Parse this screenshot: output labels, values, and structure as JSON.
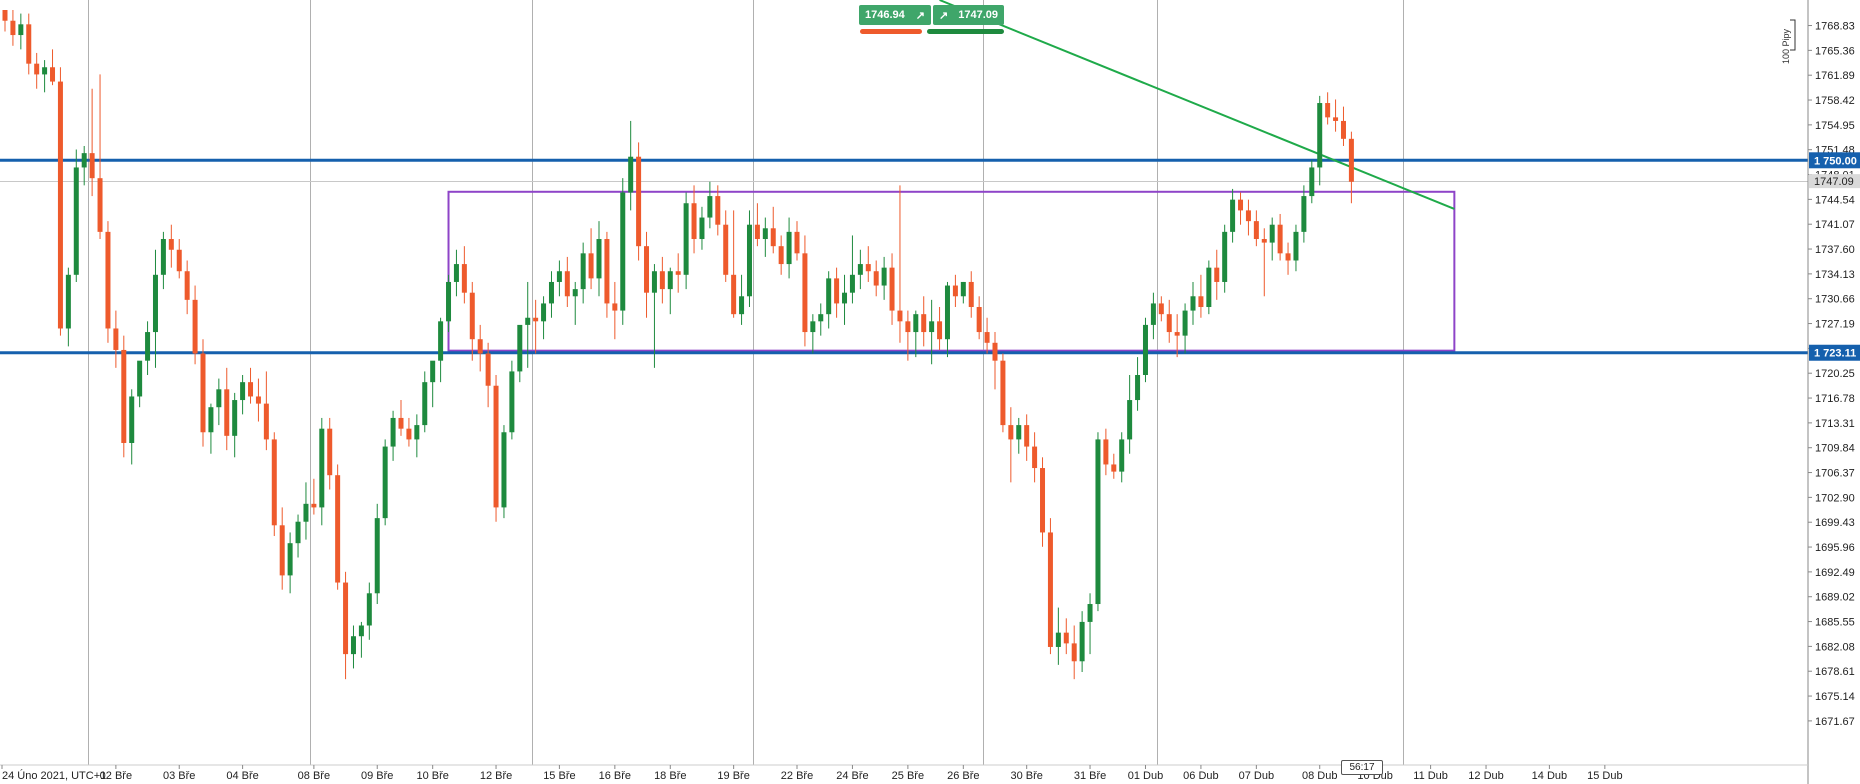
{
  "colors": {
    "up": "#1e8a3e",
    "down": "#ee5a2c",
    "hline": "#1560ad",
    "rectangle": "#8e44c8",
    "trendline": "#1faa4a",
    "grid": "#b0b0b0",
    "axis_text": "#222222"
  },
  "quote": {
    "bid": "1746.94",
    "ask": "1747.09",
    "bid_icon": "arrow-up-right-icon",
    "ask_icon": "arrow-up-right-icon"
  },
  "pip_label": "100 Pipy",
  "time_badge": "56:17",
  "chart_data": {
    "type": "candlestick",
    "ylim": [
      1669.0,
      1771.0
    ],
    "y_ticks": [
      1768.83,
      1765.36,
      1761.89,
      1758.42,
      1754.95,
      1751.48,
      1748.01,
      1744.54,
      1741.07,
      1737.6,
      1734.13,
      1730.66,
      1727.19,
      1723.72,
      1720.25,
      1716.78,
      1713.31,
      1709.84,
      1706.37,
      1702.9,
      1699.43,
      1695.96,
      1692.49,
      1689.02,
      1685.55,
      1682.08,
      1678.61,
      1675.14,
      1671.67
    ],
    "y_tick_labels": [
      "1768.83",
      "1765.36",
      "1761.89",
      "1758.42",
      "1754.95",
      "1751.48",
      "1748.01",
      "1744.54",
      "1741.07",
      "1737.60",
      "1734.13",
      "1730.66",
      "1727.19",
      "1723.72",
      "1720.25",
      "1716.78",
      "1713.31",
      "1709.84",
      "1706.37",
      "1702.90",
      "1699.43",
      "1695.96",
      "1692.49",
      "1689.02",
      "1685.55",
      "1682.08",
      "1678.61",
      "1675.14",
      "1671.67"
    ],
    "x_labels": [
      "24 Úno 2021, UTC+1",
      "02 Bře",
      "03 Bře",
      "04 Bře",
      "08 Bře",
      "09 Bře",
      "10 Bře",
      "12 Bře",
      "15 Bře",
      "16 Bře",
      "18 Bře",
      "19 Bře",
      "22 Bře",
      "24 Bře",
      "25 Bře",
      "26 Bře",
      "30 Bře",
      "31 Bře",
      "01 Dub",
      "06 Dub",
      "07 Dub",
      "08 Dub",
      "10 Dub",
      "11 Dub",
      "12 Dub",
      "14 Dub",
      "15 Dub"
    ],
    "x_label_index": [
      0,
      14,
      22,
      30,
      39,
      47,
      54,
      62,
      70,
      77,
      84,
      92,
      100,
      107,
      114,
      121,
      129,
      137,
      144,
      151,
      158,
      166,
      173,
      180,
      187,
      195,
      202
    ],
    "separator_index": [
      11,
      39,
      67,
      95,
      124,
      146,
      177
    ],
    "candles": [
      [
        1771.0,
        1771.0,
        1768.0,
        1769.5
      ],
      [
        1769.5,
        1771.0,
        1766.0,
        1767.5
      ],
      [
        1767.5,
        1770.5,
        1765.5,
        1769.0
      ],
      [
        1769.0,
        1770.5,
        1762.0,
        1763.5
      ],
      [
        1763.5,
        1765.0,
        1760.0,
        1762.0
      ],
      [
        1762.0,
        1764.0,
        1759.5,
        1763.0
      ],
      [
        1763.0,
        1765.5,
        1760.5,
        1761.0
      ],
      [
        1761.0,
        1763.0,
        1725.5,
        1726.5
      ],
      [
        1726.5,
        1735.0,
        1724.0,
        1734.0
      ],
      [
        1734.0,
        1751.5,
        1733.0,
        1749.0
      ],
      [
        1749.0,
        1752.0,
        1746.5,
        1751.0
      ],
      [
        1751.0,
        1760.0,
        1745.0,
        1747.5
      ],
      [
        1747.5,
        1762.0,
        1739.0,
        1740.0
      ],
      [
        1740.0,
        1741.5,
        1724.5,
        1726.5
      ],
      [
        1726.5,
        1729.0,
        1721.0,
        1723.5
      ],
      [
        1723.5,
        1725.5,
        1708.5,
        1710.5
      ],
      [
        1710.5,
        1718.0,
        1707.5,
        1717.0
      ],
      [
        1717.0,
        1721.5,
        1715.5,
        1722.0
      ],
      [
        1722.0,
        1727.5,
        1720.0,
        1726.0
      ],
      [
        1726.0,
        1737.5,
        1721.0,
        1734.0
      ],
      [
        1734.0,
        1740.0,
        1732.0,
        1739.0
      ],
      [
        1739.0,
        1741.0,
        1735.0,
        1737.5
      ],
      [
        1737.5,
        1739.0,
        1733.5,
        1734.5
      ],
      [
        1734.5,
        1736.0,
        1728.5,
        1730.5
      ],
      [
        1730.5,
        1732.5,
        1721.5,
        1723.0
      ],
      [
        1723.0,
        1725.0,
        1710.0,
        1712.0
      ],
      [
        1712.0,
        1716.0,
        1709.0,
        1715.5
      ],
      [
        1715.5,
        1719.5,
        1713.0,
        1718.0
      ],
      [
        1718.0,
        1721.0,
        1709.5,
        1711.5
      ],
      [
        1711.5,
        1717.5,
        1708.5,
        1716.5
      ],
      [
        1716.5,
        1720.0,
        1714.5,
        1719.0
      ],
      [
        1719.0,
        1721.0,
        1716.0,
        1717.0
      ],
      [
        1717.0,
        1719.5,
        1713.5,
        1716.0
      ],
      [
        1716.0,
        1720.5,
        1709.5,
        1711.0
      ],
      [
        1711.0,
        1712.0,
        1697.5,
        1699.0
      ],
      [
        1699.0,
        1701.5,
        1690.0,
        1692.0
      ],
      [
        1692.0,
        1698.0,
        1689.5,
        1696.5
      ],
      [
        1696.5,
        1700.5,
        1694.5,
        1699.5
      ],
      [
        1699.5,
        1705.0,
        1697.0,
        1702.0
      ],
      [
        1702.0,
        1705.5,
        1700.5,
        1701.5
      ],
      [
        1701.5,
        1714.0,
        1699.0,
        1712.5
      ],
      [
        1712.5,
        1714.0,
        1704.0,
        1706.0
      ],
      [
        1706.0,
        1707.5,
        1690.0,
        1691.0
      ],
      [
        1691.0,
        1692.5,
        1677.5,
        1681.0
      ],
      [
        1681.0,
        1685.0,
        1679.0,
        1683.5
      ],
      [
        1683.5,
        1685.5,
        1680.5,
        1685.0
      ],
      [
        1685.0,
        1691.0,
        1683.0,
        1689.5
      ],
      [
        1689.5,
        1702.0,
        1688.0,
        1700.0
      ],
      [
        1700.0,
        1711.0,
        1699.0,
        1710.0
      ],
      [
        1710.0,
        1715.0,
        1708.0,
        1714.0
      ],
      [
        1714.0,
        1716.5,
        1711.5,
        1712.5
      ],
      [
        1712.5,
        1714.0,
        1710.0,
        1711.0
      ],
      [
        1711.0,
        1714.5,
        1708.5,
        1713.0
      ],
      [
        1713.0,
        1720.5,
        1712.0,
        1719.0
      ],
      [
        1719.0,
        1721.0,
        1715.5,
        1722.0
      ],
      [
        1722.0,
        1728.0,
        1719.0,
        1727.5
      ],
      [
        1727.5,
        1734.0,
        1726.0,
        1733.0
      ],
      [
        1733.0,
        1737.5,
        1731.0,
        1735.5
      ],
      [
        1735.5,
        1738.0,
        1730.0,
        1731.5
      ],
      [
        1731.5,
        1733.0,
        1722.0,
        1725.0
      ],
      [
        1725.0,
        1727.0,
        1720.5,
        1723.0
      ],
      [
        1723.0,
        1724.5,
        1715.5,
        1718.5
      ],
      [
        1718.5,
        1720.0,
        1699.5,
        1701.5
      ],
      [
        1701.5,
        1713.0,
        1700.0,
        1712.0
      ],
      [
        1712.0,
        1722.0,
        1711.0,
        1720.5
      ],
      [
        1720.5,
        1726.0,
        1719.0,
        1727.0
      ],
      [
        1727.0,
        1733.0,
        1721.0,
        1728.0
      ],
      [
        1728.0,
        1730.5,
        1723.0,
        1727.5
      ],
      [
        1727.5,
        1731.0,
        1725.0,
        1730.0
      ],
      [
        1730.0,
        1734.5,
        1728.0,
        1733.0
      ],
      [
        1733.0,
        1736.0,
        1731.0,
        1734.5
      ],
      [
        1734.5,
        1736.5,
        1729.5,
        1731.0
      ],
      [
        1731.0,
        1733.0,
        1727.0,
        1732.0
      ],
      [
        1732.0,
        1738.5,
        1730.0,
        1737.0
      ],
      [
        1737.0,
        1740.5,
        1732.0,
        1733.5
      ],
      [
        1733.5,
        1741.5,
        1731.0,
        1739.0
      ],
      [
        1739.0,
        1740.0,
        1728.0,
        1730.0
      ],
      [
        1730.0,
        1733.0,
        1725.0,
        1729.0
      ],
      [
        1729.0,
        1747.5,
        1727.0,
        1745.5
      ],
      [
        1745.5,
        1755.5,
        1743.0,
        1750.5
      ],
      [
        1750.5,
        1752.5,
        1736.0,
        1738.0
      ],
      [
        1738.0,
        1740.0,
        1728.0,
        1731.5
      ],
      [
        1731.5,
        1735.5,
        1721.0,
        1734.5
      ],
      [
        1734.5,
        1736.5,
        1730.0,
        1732.0
      ],
      [
        1732.0,
        1735.0,
        1728.5,
        1734.5
      ],
      [
        1734.5,
        1737.0,
        1731.5,
        1734.0
      ],
      [
        1734.0,
        1745.5,
        1732.0,
        1744.0
      ],
      [
        1744.0,
        1746.5,
        1737.0,
        1739.0
      ],
      [
        1739.0,
        1743.5,
        1737.5,
        1742.0
      ],
      [
        1742.0,
        1747.0,
        1740.5,
        1745.0
      ],
      [
        1745.0,
        1746.5,
        1739.5,
        1741.0
      ],
      [
        1741.0,
        1743.0,
        1733.0,
        1734.0
      ],
      [
        1734.0,
        1743.0,
        1728.0,
        1728.5
      ],
      [
        1728.5,
        1734.0,
        1727.0,
        1731.0
      ],
      [
        1731.0,
        1743.0,
        1729.5,
        1741.0
      ],
      [
        1741.0,
        1744.0,
        1738.0,
        1739.0
      ],
      [
        1739.0,
        1742.0,
        1736.5,
        1740.5
      ],
      [
        1740.5,
        1743.5,
        1737.0,
        1738.0
      ],
      [
        1738.0,
        1739.5,
        1734.0,
        1735.5
      ],
      [
        1735.5,
        1742.0,
        1733.5,
        1740.0
      ],
      [
        1740.0,
        1741.5,
        1736.0,
        1737.0
      ],
      [
        1737.0,
        1739.5,
        1724.0,
        1726.0
      ],
      [
        1726.0,
        1728.5,
        1723.0,
        1727.5
      ],
      [
        1727.5,
        1730.0,
        1725.5,
        1728.5
      ],
      [
        1728.5,
        1734.5,
        1726.5,
        1733.5
      ],
      [
        1733.5,
        1735.0,
        1728.0,
        1730.0
      ],
      [
        1730.0,
        1734.0,
        1727.0,
        1731.5
      ],
      [
        1731.5,
        1739.5,
        1730.0,
        1734.0
      ],
      [
        1734.0,
        1737.5,
        1732.0,
        1735.5
      ],
      [
        1735.5,
        1738.0,
        1733.0,
        1734.5
      ],
      [
        1734.5,
        1736.0,
        1731.0,
        1732.5
      ],
      [
        1732.5,
        1736.5,
        1730.5,
        1735.0
      ],
      [
        1735.0,
        1737.0,
        1727.0,
        1729.0
      ],
      [
        1729.0,
        1746.5,
        1724.5,
        1727.5
      ],
      [
        1727.5,
        1729.0,
        1722.0,
        1726.0
      ],
      [
        1726.0,
        1729.0,
        1722.5,
        1728.5
      ],
      [
        1728.5,
        1731.0,
        1724.0,
        1726.0
      ],
      [
        1726.0,
        1730.5,
        1721.5,
        1727.5
      ],
      [
        1727.5,
        1729.5,
        1723.5,
        1725.0
      ],
      [
        1725.0,
        1733.0,
        1722.5,
        1732.5
      ],
      [
        1732.5,
        1734.0,
        1729.5,
        1731.0
      ],
      [
        1731.0,
        1733.0,
        1730.0,
        1733.0
      ],
      [
        1733.0,
        1734.5,
        1728.0,
        1729.5
      ],
      [
        1729.5,
        1731.0,
        1725.0,
        1726.0
      ],
      [
        1726.0,
        1728.0,
        1723.0,
        1724.5
      ],
      [
        1724.5,
        1726.0,
        1718.0,
        1722.0
      ],
      [
        1722.0,
        1723.0,
        1712.0,
        1713.0
      ],
      [
        1713.0,
        1715.5,
        1705.0,
        1711.0
      ],
      [
        1711.0,
        1714.0,
        1709.0,
        1713.0
      ],
      [
        1713.0,
        1714.5,
        1708.0,
        1710.0
      ],
      [
        1710.0,
        1712.0,
        1705.0,
        1707.0
      ],
      [
        1707.0,
        1708.5,
        1696.0,
        1698.0
      ],
      [
        1698.0,
        1700.0,
        1681.0,
        1682.0
      ],
      [
        1682.0,
        1687.5,
        1679.5,
        1684.0
      ],
      [
        1684.0,
        1686.0,
        1681.0,
        1682.5
      ],
      [
        1682.5,
        1685.0,
        1677.5,
        1680.0
      ],
      [
        1680.0,
        1687.0,
        1678.5,
        1685.5
      ],
      [
        1685.5,
        1689.5,
        1681.0,
        1688.0
      ],
      [
        1688.0,
        1712.0,
        1687.0,
        1711.0
      ],
      [
        1711.0,
        1712.5,
        1706.0,
        1707.5
      ],
      [
        1707.5,
        1709.0,
        1705.5,
        1706.5
      ],
      [
        1706.5,
        1712.0,
        1705.0,
        1711.0
      ],
      [
        1711.0,
        1720.0,
        1709.0,
        1716.5
      ],
      [
        1716.5,
        1722.5,
        1715.0,
        1720.0
      ],
      [
        1720.0,
        1728.0,
        1719.0,
        1727.0
      ],
      [
        1727.0,
        1731.5,
        1725.0,
        1730.0
      ],
      [
        1730.0,
        1731.0,
        1727.5,
        1728.5
      ],
      [
        1728.5,
        1730.5,
        1724.5,
        1726.0
      ],
      [
        1726.0,
        1728.5,
        1722.5,
        1725.5
      ],
      [
        1725.5,
        1730.0,
        1723.0,
        1729.0
      ],
      [
        1729.0,
        1733.0,
        1727.0,
        1731.0
      ],
      [
        1731.0,
        1734.0,
        1728.0,
        1729.5
      ],
      [
        1729.5,
        1736.0,
        1728.5,
        1735.0
      ],
      [
        1735.0,
        1737.5,
        1730.5,
        1733.0
      ],
      [
        1733.0,
        1741.0,
        1731.5,
        1740.0
      ],
      [
        1740.0,
        1746.0,
        1738.5,
        1744.5
      ],
      [
        1744.5,
        1745.5,
        1741.0,
        1743.0
      ],
      [
        1743.0,
        1744.5,
        1739.5,
        1741.5
      ],
      [
        1741.5,
        1743.0,
        1738.0,
        1739.0
      ],
      [
        1739.0,
        1740.5,
        1731.0,
        1738.5
      ],
      [
        1738.5,
        1742.0,
        1736.0,
        1741.0
      ],
      [
        1741.0,
        1742.5,
        1736.0,
        1737.0
      ],
      [
        1737.0,
        1738.5,
        1734.0,
        1736.0
      ],
      [
        1736.0,
        1741.0,
        1734.5,
        1740.0
      ],
      [
        1740.0,
        1746.5,
        1738.5,
        1745.0
      ],
      [
        1745.0,
        1750.0,
        1744.0,
        1749.0
      ],
      [
        1749.0,
        1759.0,
        1746.5,
        1758.0
      ],
      [
        1758.0,
        1759.5,
        1755.0,
        1756.0
      ],
      [
        1756.0,
        1758.5,
        1754.0,
        1755.5
      ],
      [
        1755.5,
        1757.5,
        1752.0,
        1753.0
      ],
      [
        1753.0,
        1754.0,
        1744.0,
        1747.0
      ]
    ]
  },
  "drawings": {
    "hlines": [
      {
        "price": 1750.0,
        "label": "1 750.00"
      },
      {
        "price": 1723.11,
        "label": "1 723.11"
      }
    ],
    "current_price": {
      "price": 1747.09,
      "label": "1747.09"
    },
    "rectangle": {
      "index_start": 56,
      "index_end": 183,
      "price_top": 1745.6,
      "price_bottom": 1723.4
    },
    "trendline": {
      "index_start": 118,
      "price_start": 1771.0,
      "index_end": 183,
      "price_end": 1743.2
    }
  }
}
